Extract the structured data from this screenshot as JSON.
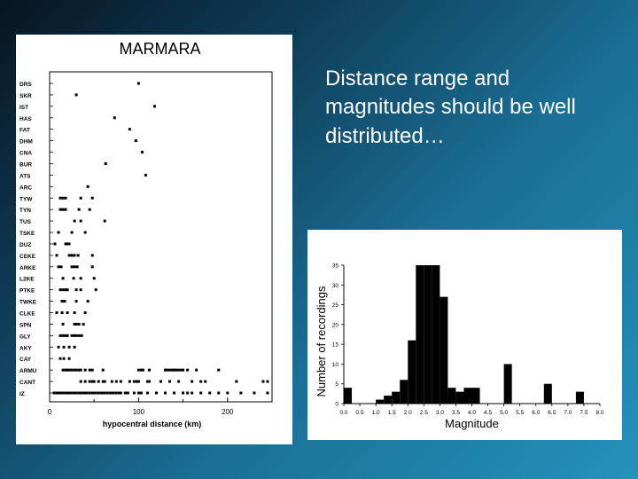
{
  "slide": {
    "text": "Distance range and magnitudes should be well distributed…"
  },
  "colors": {
    "background_dark": "#071522",
    "background_light": "#2492bb",
    "panel": "#ffffff",
    "ink": "#000000"
  },
  "chart_data": [
    {
      "type": "scatter",
      "title": "MARMARA",
      "xlabel": "hypocentral distance (km)",
      "ylabel": "",
      "xlim": [
        0,
        250
      ],
      "xticks": [
        0,
        100,
        200
      ],
      "stations": [
        "DRS",
        "SKR",
        "IST",
        "HAS",
        "FAT",
        "DHM",
        "CNA",
        "BUR",
        "ATS",
        "ARC",
        "TYW",
        "TYN",
        "TUS",
        "TSKE",
        "DUZ",
        "CEKE",
        "ARKE",
        "L2KE",
        "PTKE",
        "TWKE",
        "CLKE",
        "SPN",
        "GLY",
        "AKY",
        "CAY",
        "ARMU",
        "CANT",
        "IZ"
      ],
      "points": {
        "DRS": [
          100
        ],
        "SKR": [
          30
        ],
        "IST": [
          118
        ],
        "HAS": [
          73
        ],
        "FAT": [
          90
        ],
        "DHM": [
          97
        ],
        "CNA": [
          104
        ],
        "BUR": [
          63
        ],
        "ATS": [
          108
        ],
        "ARC": [
          43
        ],
        "TYW": [
          12,
          15,
          18,
          35,
          48
        ],
        "TYN": [
          12,
          15,
          18,
          33,
          45
        ],
        "TUS": [
          28,
          35,
          62
        ],
        "TSKE": [
          10,
          25,
          40
        ],
        "DUZ": [
          6,
          18,
          20,
          22
        ],
        "CEKE": [
          8,
          22,
          25,
          28,
          32,
          48
        ],
        "ARKE": [
          10,
          13,
          25,
          28,
          31,
          48
        ],
        "L2KE": [
          15,
          27,
          35,
          50
        ],
        "PTKE": [
          12,
          15,
          18,
          20,
          30,
          35,
          52
        ],
        "TWKE": [
          14,
          17,
          30,
          43
        ],
        "CLKE": [
          8,
          14,
          20,
          28,
          40
        ],
        "SPN": [
          15,
          28,
          30,
          33,
          38
        ],
        "GLY": [
          12,
          15,
          18,
          20,
          25,
          28,
          30,
          33,
          36
        ],
        "AKY": [
          10,
          16,
          22,
          28
        ],
        "CAY": [
          12,
          16,
          22
        ],
        "ARMU": [
          15,
          18,
          20,
          22,
          25,
          28,
          30,
          33,
          35,
          40,
          45,
          48,
          60,
          100,
          103,
          105,
          112,
          130,
          132,
          135,
          138,
          140,
          142,
          145,
          148,
          150,
          155,
          165,
          190
        ],
        "CANT": [
          35,
          40,
          45,
          48,
          50,
          55,
          60,
          62,
          70,
          75,
          80,
          90,
          95,
          98,
          100,
          110,
          112,
          125,
          135,
          145,
          160,
          170,
          175,
          210,
          240,
          245
        ],
        "IZ": [
          5,
          8,
          10,
          12,
          15,
          18,
          20,
          22,
          25,
          28,
          30,
          33,
          35,
          38,
          40,
          42,
          45,
          48,
          50,
          52,
          55,
          58,
          60,
          62,
          65,
          68,
          70,
          72,
          75,
          78,
          80,
          85,
          88,
          95,
          100,
          103,
          110,
          120,
          130,
          140,
          150,
          155,
          160,
          170,
          180,
          190,
          200,
          215,
          230,
          245
        ]
      }
    },
    {
      "type": "bar",
      "title": "",
      "xlabel": "Magnitude",
      "ylabel": "Number of recordings",
      "xlim": [
        0,
        8
      ],
      "ylim": [
        0,
        35
      ],
      "xticks": [
        "0.0",
        "0.5",
        "1.0",
        "1.5",
        "2.0",
        "2.5",
        "3.0",
        "3.5",
        "4.0",
        "4.5",
        "5.0",
        "5.5",
        "6.0",
        "6.5",
        "7.0",
        "7.5",
        "8.0"
      ],
      "yticks": [
        0,
        5,
        10,
        15,
        20,
        25,
        30,
        35
      ],
      "bin_width": 0.25,
      "bin_starts": [
        0.0,
        1.0,
        1.25,
        1.5,
        1.75,
        2.0,
        2.25,
        2.5,
        2.75,
        3.0,
        3.25,
        3.5,
        3.75,
        4.0,
        5.0,
        6.25,
        7.25
      ],
      "values": [
        4,
        1,
        2,
        3,
        6,
        16,
        35,
        35,
        35,
        27,
        4,
        3,
        4,
        4,
        10,
        5,
        3
      ]
    }
  ]
}
